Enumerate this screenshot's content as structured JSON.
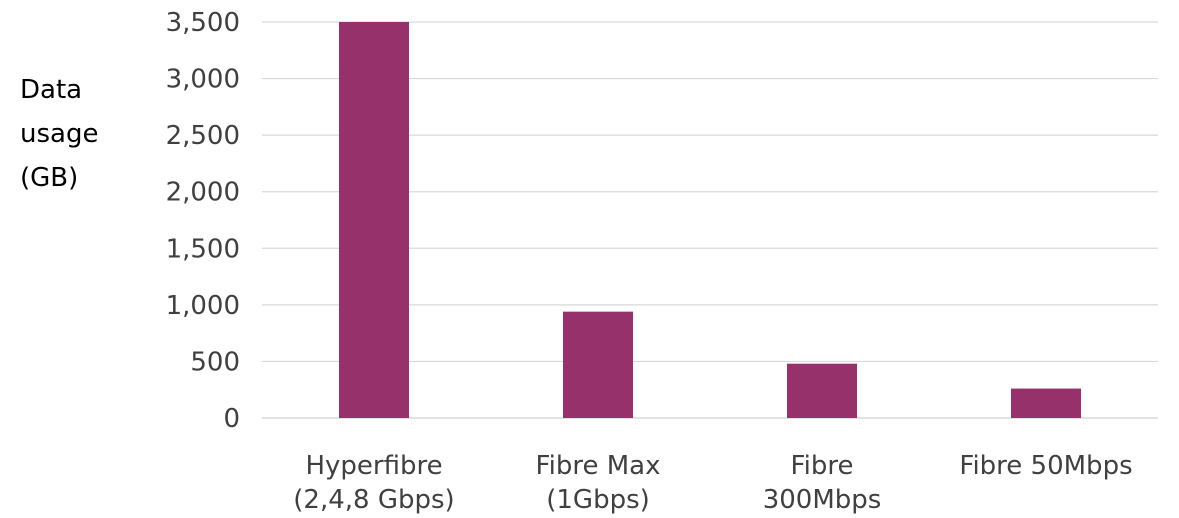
{
  "chart_data": {
    "type": "bar",
    "title": "",
    "ylabel_lines": [
      "Data",
      "usage",
      "(GB)"
    ],
    "xlabel": "",
    "categories": [
      [
        "Hyperfibre",
        "(2,4,8 Gbps)"
      ],
      [
        "Fibre Max",
        "(1Gbps)"
      ],
      [
        "Fibre",
        "300Mbps"
      ],
      [
        "Fibre 50Mbps"
      ]
    ],
    "series": [
      {
        "values": [
          3500,
          940,
          480,
          260
        ],
        "color": "#96316c"
      }
    ],
    "ylim": [
      0,
      3500
    ],
    "yticks": [
      0,
      500,
      1000,
      1500,
      2000,
      2500,
      3000,
      3500
    ],
    "ytick_labels": [
      "0",
      "500",
      "1,000",
      "1,500",
      "2,000",
      "2,500",
      "3,000",
      "3,500"
    ],
    "grid": true,
    "legend": "none"
  }
}
